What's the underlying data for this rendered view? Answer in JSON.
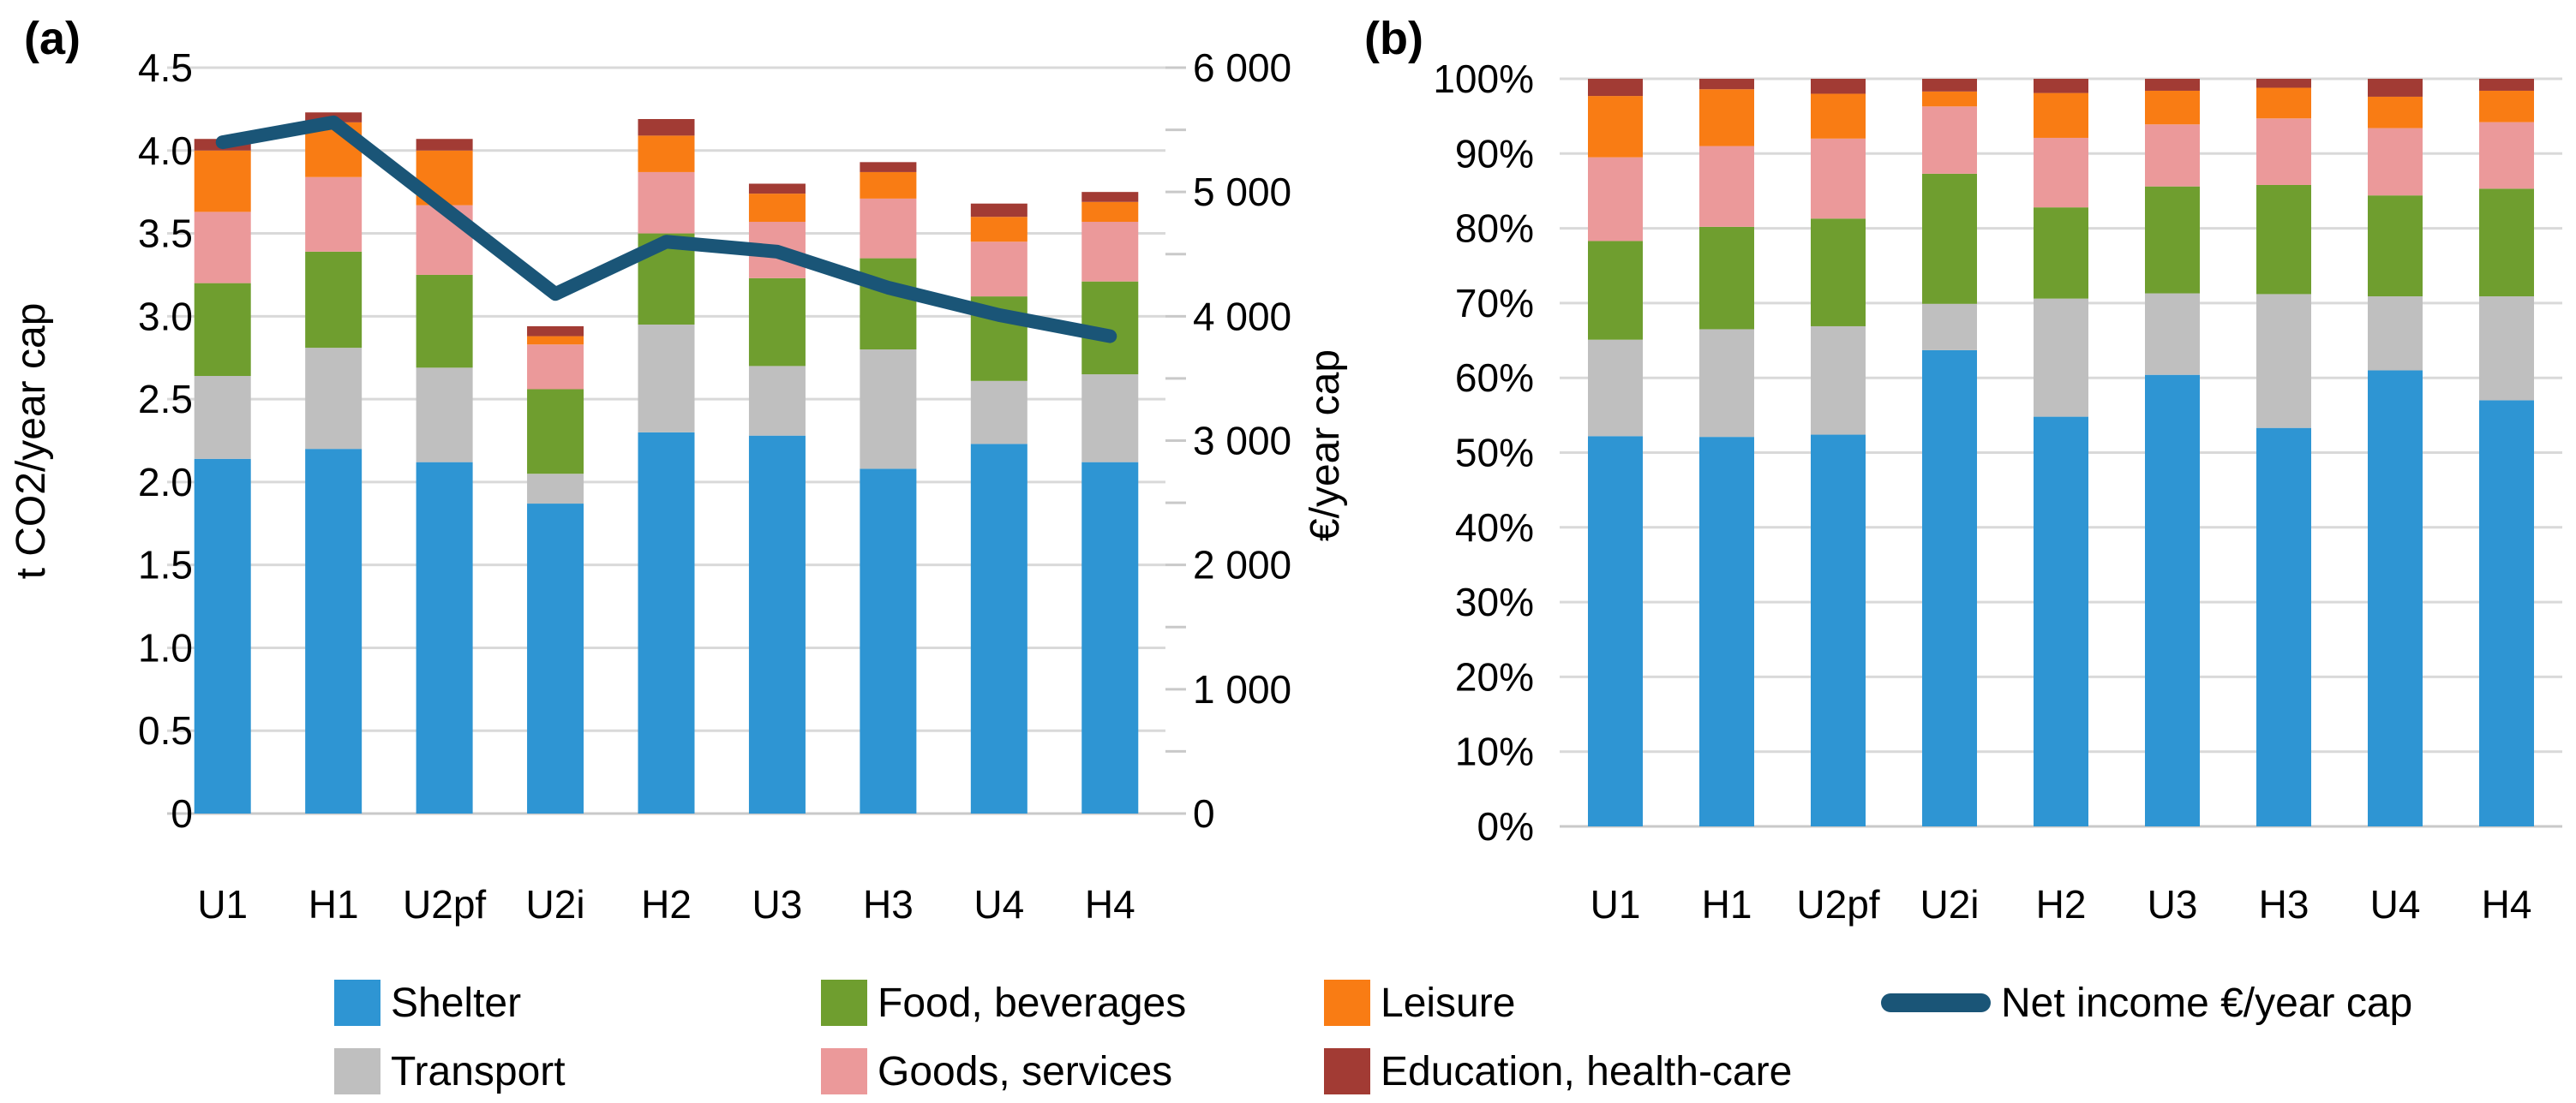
{
  "page": {
    "panel_a_label": "(a)",
    "panel_b_label": "(b)"
  },
  "colors": {
    "shelter": "#2E95D3",
    "transport": "#BFBFBF",
    "food": "#6F9E2F",
    "goods": "#EB999A",
    "leisure": "#F97C14",
    "education": "#A23B34",
    "net_income": "#1A5577",
    "gridline": "#D9D9D9",
    "axis": "#C9C9C9",
    "text": "#000000"
  },
  "legend": {
    "items": [
      {
        "id": "shelter",
        "label": "Shelter",
        "color_key": "shelter",
        "swatch": "square"
      },
      {
        "id": "transport",
        "label": "Transport",
        "color_key": "transport",
        "swatch": "square"
      },
      {
        "id": "food",
        "label": "Food, beverages",
        "color_key": "food",
        "swatch": "square"
      },
      {
        "id": "goods",
        "label": "Goods, services",
        "color_key": "goods",
        "swatch": "square"
      },
      {
        "id": "leisure",
        "label": "Leisure",
        "color_key": "leisure",
        "swatch": "square"
      },
      {
        "id": "education",
        "label": "Education, health-care",
        "color_key": "education",
        "swatch": "square"
      },
      {
        "id": "net_income",
        "label": "Net income €/year cap",
        "color_key": "net_income",
        "swatch": "line"
      }
    ]
  },
  "chart_data": [
    {
      "type": "bar",
      "subtype": "stacked-bar-with-line",
      "panel": "a",
      "categories": [
        "U1",
        "H1",
        "U2pf",
        "U2i",
        "H2",
        "U3",
        "H3",
        "U4",
        "H4"
      ],
      "series": [
        {
          "name": "Shelter",
          "color_key": "shelter",
          "values": [
            2.14,
            2.2,
            2.12,
            1.87,
            2.3,
            2.28,
            2.08,
            2.23,
            2.12
          ]
        },
        {
          "name": "Transport",
          "color_key": "transport",
          "values": [
            0.5,
            0.61,
            0.57,
            0.18,
            0.65,
            0.42,
            0.72,
            0.38,
            0.53
          ]
        },
        {
          "name": "Food, beverages",
          "color_key": "food",
          "values": [
            0.56,
            0.58,
            0.56,
            0.51,
            0.55,
            0.53,
            0.55,
            0.51,
            0.56
          ]
        },
        {
          "name": "Goods, services",
          "color_key": "goods",
          "values": [
            0.43,
            0.45,
            0.42,
            0.27,
            0.37,
            0.34,
            0.36,
            0.33,
            0.36
          ]
        },
        {
          "name": "Leisure",
          "color_key": "leisure",
          "values": [
            0.37,
            0.33,
            0.33,
            0.05,
            0.22,
            0.17,
            0.16,
            0.15,
            0.12
          ]
        },
        {
          "name": "Education, health-care",
          "color_key": "education",
          "values": [
            0.07,
            0.06,
            0.07,
            0.06,
            0.1,
            0.06,
            0.06,
            0.08,
            0.06
          ]
        }
      ],
      "line": {
        "name": "Net income €/year cap",
        "color_key": "net_income",
        "axis": "right",
        "values": [
          5400,
          5560,
          4870,
          4180,
          4600,
          4520,
          4230,
          4010,
          3840
        ]
      },
      "y_left": {
        "title": "t CO2/year cap",
        "min": 0,
        "max": 4.5,
        "tick_labels": [
          "4.5",
          "4.0",
          "3.5",
          "3.0",
          "2.5",
          "2.0",
          "1.5",
          "1.0",
          "0.5",
          "0"
        ]
      },
      "y_right": {
        "title": "€/year cap",
        "min": 0,
        "max": 6000,
        "minor_tick_step": 500,
        "tick_labels": [
          "6 000",
          "5 000",
          "4 000",
          "3 000",
          "2 000",
          "1 000",
          "0"
        ]
      },
      "grid": true,
      "legend_position": "bottom"
    },
    {
      "type": "bar",
      "subtype": "stacked-bar-100pct",
      "panel": "b",
      "categories": [
        "U1",
        "H1",
        "U2pf",
        "U2i",
        "H2",
        "U3",
        "H3",
        "U4",
        "H4"
      ],
      "series": [
        {
          "name": "Shelter",
          "color_key": "shelter",
          "values": [
            52.2,
            52.1,
            52.4,
            63.7,
            54.8,
            60.4,
            53.3,
            61.0,
            57.0
          ]
        },
        {
          "name": "Transport",
          "color_key": "transport",
          "values": [
            12.9,
            14.4,
            14.5,
            6.2,
            15.8,
            10.9,
            17.9,
            9.9,
            13.9
          ]
        },
        {
          "name": "Food, beverages",
          "color_key": "food",
          "values": [
            13.2,
            13.7,
            14.4,
            17.4,
            12.2,
            14.3,
            14.6,
            13.5,
            14.4
          ]
        },
        {
          "name": "Goods, services",
          "color_key": "goods",
          "values": [
            11.2,
            10.8,
            10.7,
            9.0,
            9.3,
            8.3,
            8.9,
            9.0,
            8.9
          ]
        },
        {
          "name": "Leisure",
          "color_key": "leisure",
          "values": [
            8.2,
            7.6,
            6.0,
            2.0,
            6.0,
            4.5,
            4.1,
            4.2,
            4.2
          ]
        },
        {
          "name": "Education, health-care",
          "color_key": "education",
          "values": [
            2.3,
            1.4,
            2.0,
            1.7,
            1.9,
            1.6,
            1.2,
            2.4,
            1.6
          ]
        }
      ],
      "y": {
        "title": "",
        "min": 0,
        "max": 100,
        "tick_labels": [
          "100%",
          "90%",
          "80%",
          "70%",
          "60%",
          "50%",
          "40%",
          "30%",
          "20%",
          "10%",
          "0%"
        ]
      },
      "grid": true,
      "legend_position": "bottom"
    }
  ]
}
